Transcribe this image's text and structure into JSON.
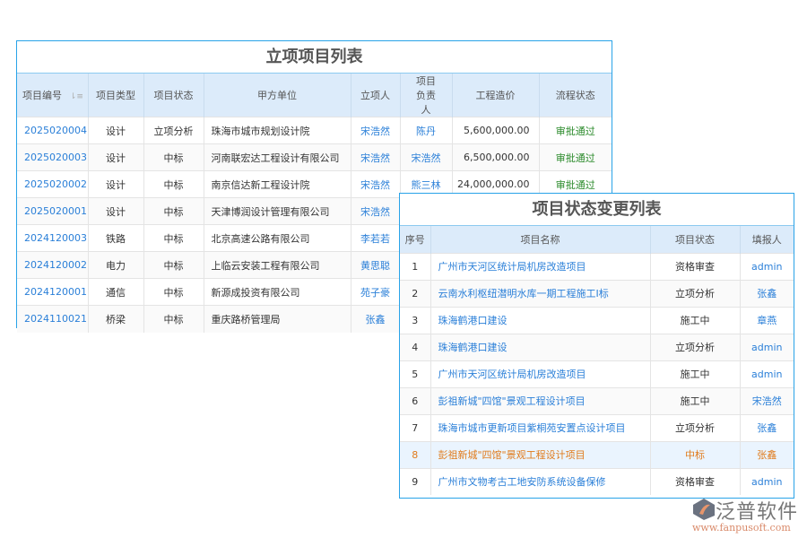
{
  "table1": {
    "title": "立项项目列表",
    "headers": [
      "项目编号",
      "项目类型",
      "项目状态",
      "甲方单位",
      "立项人",
      "项目负责人",
      "工程造价",
      "流程状态"
    ],
    "rows": [
      [
        "2025020004",
        "设计",
        "立项分析",
        "珠海市城市规划设计院",
        "宋浩然",
        "陈丹",
        "5,600,000.00",
        "审批通过"
      ],
      [
        "2025020003",
        "设计",
        "中标",
        "河南联宏达工程设计有限公司",
        "宋浩然",
        "宋浩然",
        "6,500,000.00",
        "审批通过"
      ],
      [
        "2025020002",
        "设计",
        "中标",
        "南京信达新工程设计院",
        "宋浩然",
        "熊三林",
        "24,000,000.00",
        "审批通过"
      ],
      [
        "2025020001",
        "设计",
        "中标",
        "天津博润设计管理有限公司",
        "宋浩然",
        "",
        "",
        ""
      ],
      [
        "2024120003",
        "铁路",
        "中标",
        "北京高速公路有限公司",
        "李若若",
        "",
        "",
        ""
      ],
      [
        "2024120002",
        "电力",
        "中标",
        "上临云安装工程有限公司",
        "黄思聪",
        "",
        "",
        ""
      ],
      [
        "2024120001",
        "通信",
        "中标",
        "新源成投资有限公司",
        "苑子豪",
        "",
        "",
        ""
      ],
      [
        "2024110021",
        "桥梁",
        "中标",
        "重庆路桥管理局",
        "张鑫",
        "",
        "",
        ""
      ]
    ]
  },
  "table2": {
    "title": "项目状态变更列表",
    "headers": [
      "序号",
      "项目名称",
      "项目状态",
      "填报人"
    ],
    "rows": [
      [
        "1",
        "广州市天河区统计局机房改造项目",
        "资格审查",
        "admin"
      ],
      [
        "2",
        "云南水利枢纽潜明水库一期工程施工I标",
        "立项分析",
        "张鑫"
      ],
      [
        "3",
        "珠海鹤港口建设",
        "施工中",
        "章燕"
      ],
      [
        "4",
        "珠海鹤港口建设",
        "立项分析",
        "admin"
      ],
      [
        "5",
        "广州市天河区统计局机房改造项目",
        "施工中",
        "admin"
      ],
      [
        "6",
        "彭祖新城\"四馆\"景观工程设计项目",
        "施工中",
        "宋浩然"
      ],
      [
        "7",
        "珠海市城市更新项目紫桐苑安置点设计项目",
        "立项分析",
        "张鑫"
      ],
      [
        "8",
        "彭祖新城\"四馆\"景观工程设计项目",
        "中标",
        "张鑫"
      ],
      [
        "9",
        "广州市文物考古工地安防系统设备保修",
        "资格审查",
        "admin"
      ]
    ],
    "highlighted_row": 8
  },
  "logo": {
    "name": "泛普软件",
    "url": "www.fanpusoft.com"
  },
  "colors": {
    "border": "#29a3e8",
    "header_bg": "#dcebfa",
    "link": "#2a7fd8",
    "approved": "#2a8a2a",
    "highlight": "#e07b1c"
  }
}
